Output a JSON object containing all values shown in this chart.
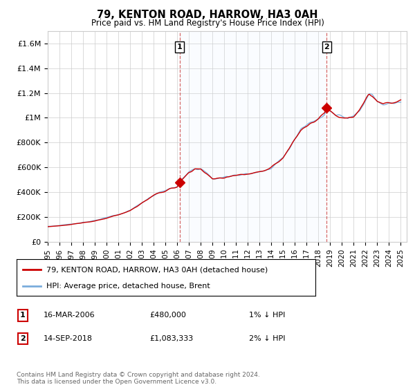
{
  "title": "79, KENTON ROAD, HARROW, HA3 0AH",
  "subtitle": "Price paid vs. HM Land Registry's House Price Index (HPI)",
  "ylabel_ticks": [
    "£0",
    "£200K",
    "£400K",
    "£600K",
    "£800K",
    "£1M",
    "£1.2M",
    "£1.4M",
    "£1.6M"
  ],
  "ytick_values": [
    0,
    200000,
    400000,
    600000,
    800000,
    1000000,
    1200000,
    1400000,
    1600000
  ],
  "ylim": [
    0,
    1700000
  ],
  "xlim_start": 1995.0,
  "xlim_end": 2025.5,
  "purchase1_x": 2006.21,
  "purchase1_y": 480000,
  "purchase1_label": "1",
  "purchase1_date": "16-MAR-2006",
  "purchase1_price": "£480,000",
  "purchase1_hpi": "1% ↓ HPI",
  "purchase2_x": 2018.71,
  "purchase2_y": 1083333,
  "purchase2_label": "2",
  "purchase2_date": "14-SEP-2018",
  "purchase2_price": "£1,083,333",
  "purchase2_hpi": "2% ↓ HPI",
  "line_color_house": "#cc0000",
  "line_color_hpi": "#7aacdc",
  "fill_color": "#ddeeff",
  "grid_color": "#cccccc",
  "background_color": "#ffffff",
  "legend_house": "79, KENTON ROAD, HARROW, HA3 0AH (detached house)",
  "legend_hpi": "HPI: Average price, detached house, Brent",
  "footnote": "Contains HM Land Registry data © Crown copyright and database right 2024.\nThis data is licensed under the Open Government Licence v3.0.",
  "xtick_years": [
    1995,
    1996,
    1997,
    1998,
    1999,
    2000,
    2001,
    2002,
    2003,
    2004,
    2005,
    2006,
    2007,
    2008,
    2009,
    2010,
    2011,
    2012,
    2013,
    2014,
    2015,
    2016,
    2017,
    2018,
    2019,
    2020,
    2021,
    2022,
    2023,
    2024,
    2025
  ]
}
